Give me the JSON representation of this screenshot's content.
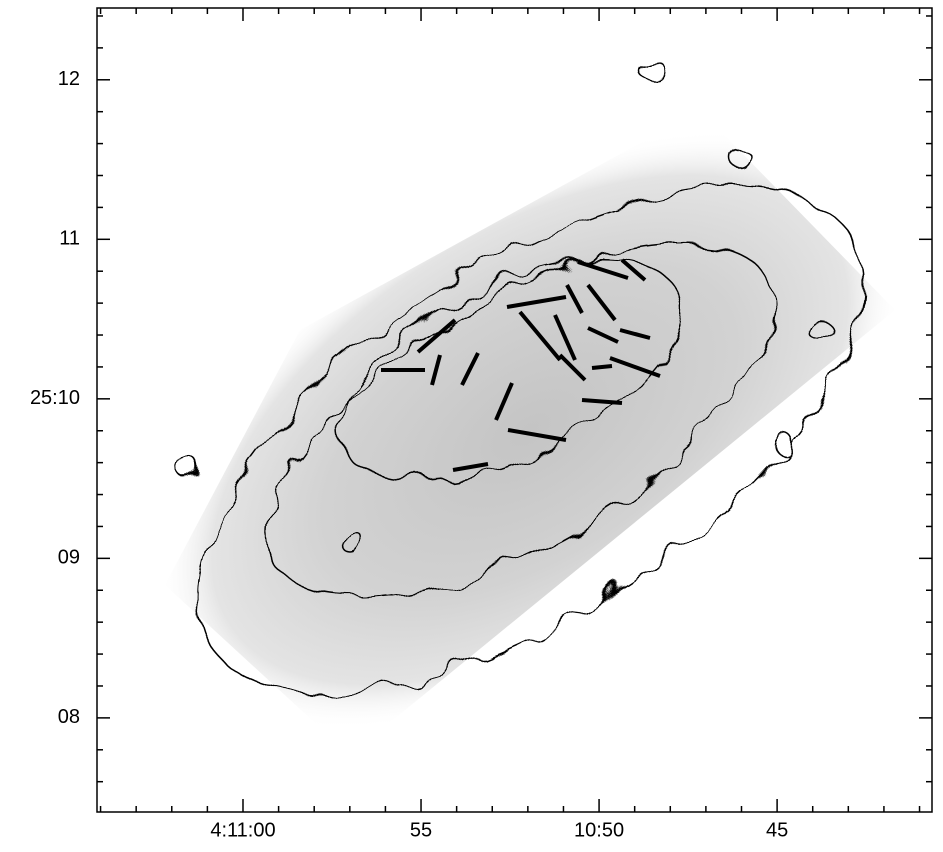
{
  "chart_data": {
    "type": "image",
    "xlim": [
      64.1,
      40.65
    ],
    "ylim": [
      7.41,
      12.45
    ],
    "xticks": [
      {
        "value": 60,
        "label": "4:11:00"
      },
      55,
      {
        "value": 50,
        "label": "10:50"
      },
      45
    ],
    "yticks": [
      12,
      11,
      {
        "value": 10,
        "label": "25:10"
      },
      {
        "value": 9,
        "label": "09"
      },
      {
        "value": 8,
        "label": "08"
      }
    ],
    "xminorticks": [
      41,
      42,
      43,
      44,
      46,
      47,
      48,
      49,
      51,
      52,
      53,
      54,
      56,
      57,
      58,
      59,
      61,
      62,
      63,
      64
    ],
    "yminorticks": [
      7.6,
      7.8,
      8.2,
      8.4,
      8.6,
      8.8,
      9.2,
      9.4,
      9.6,
      9.8,
      10.2,
      10.4,
      10.6,
      10.8,
      11.2,
      11.4,
      11.6,
      11.8,
      12.2,
      12.4
    ]
  }
}
